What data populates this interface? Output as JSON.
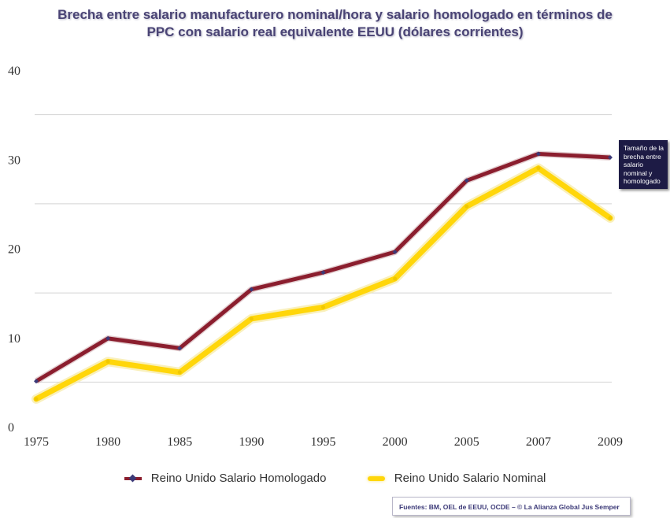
{
  "title_line1": "Brecha entre salario manufacturero nominal/hora y salario homologado en términos de",
  "title_line2": "PPC con salario real equivalente EEUU (dólares corrientes)",
  "callout_text": "Tamaño de la brecha entre salario nominal y homologado",
  "source": "Fuentes: BM, OEL de EEUU, OCDE – © La Alianza Global Jus Semper",
  "colors": {
    "homologado": "#8b1e2e",
    "nominal": "#ffd60a",
    "marker": "#3c3a78",
    "grid": "#d4d4d4"
  },
  "chart_data": {
    "type": "line",
    "title": "Brecha entre salario manufacturero nominal/hora y salario homologado en términos de PPC con salario real equivalente EEUU (dólares corrientes)",
    "xlabel": "",
    "ylabel": "",
    "categories": [
      "1975",
      "1980",
      "1985",
      "1990",
      "1995",
      "2000",
      "2005",
      "2007",
      "2009"
    ],
    "ylim": [
      0,
      40
    ],
    "yticks": [
      0,
      10,
      20,
      30,
      40
    ],
    "series": [
      {
        "name": "Reino Unido Salario Homologado",
        "values": [
          5.1,
          9.9,
          8.8,
          15.4,
          17.3,
          19.6,
          27.6,
          30.6,
          30.2
        ]
      },
      {
        "name": "Reino Unido Salario Nominal",
        "values": [
          3.1,
          7.3,
          6.1,
          12.1,
          13.4,
          16.6,
          24.7,
          29.0,
          23.4
        ]
      }
    ],
    "legend_position": "bottom"
  }
}
